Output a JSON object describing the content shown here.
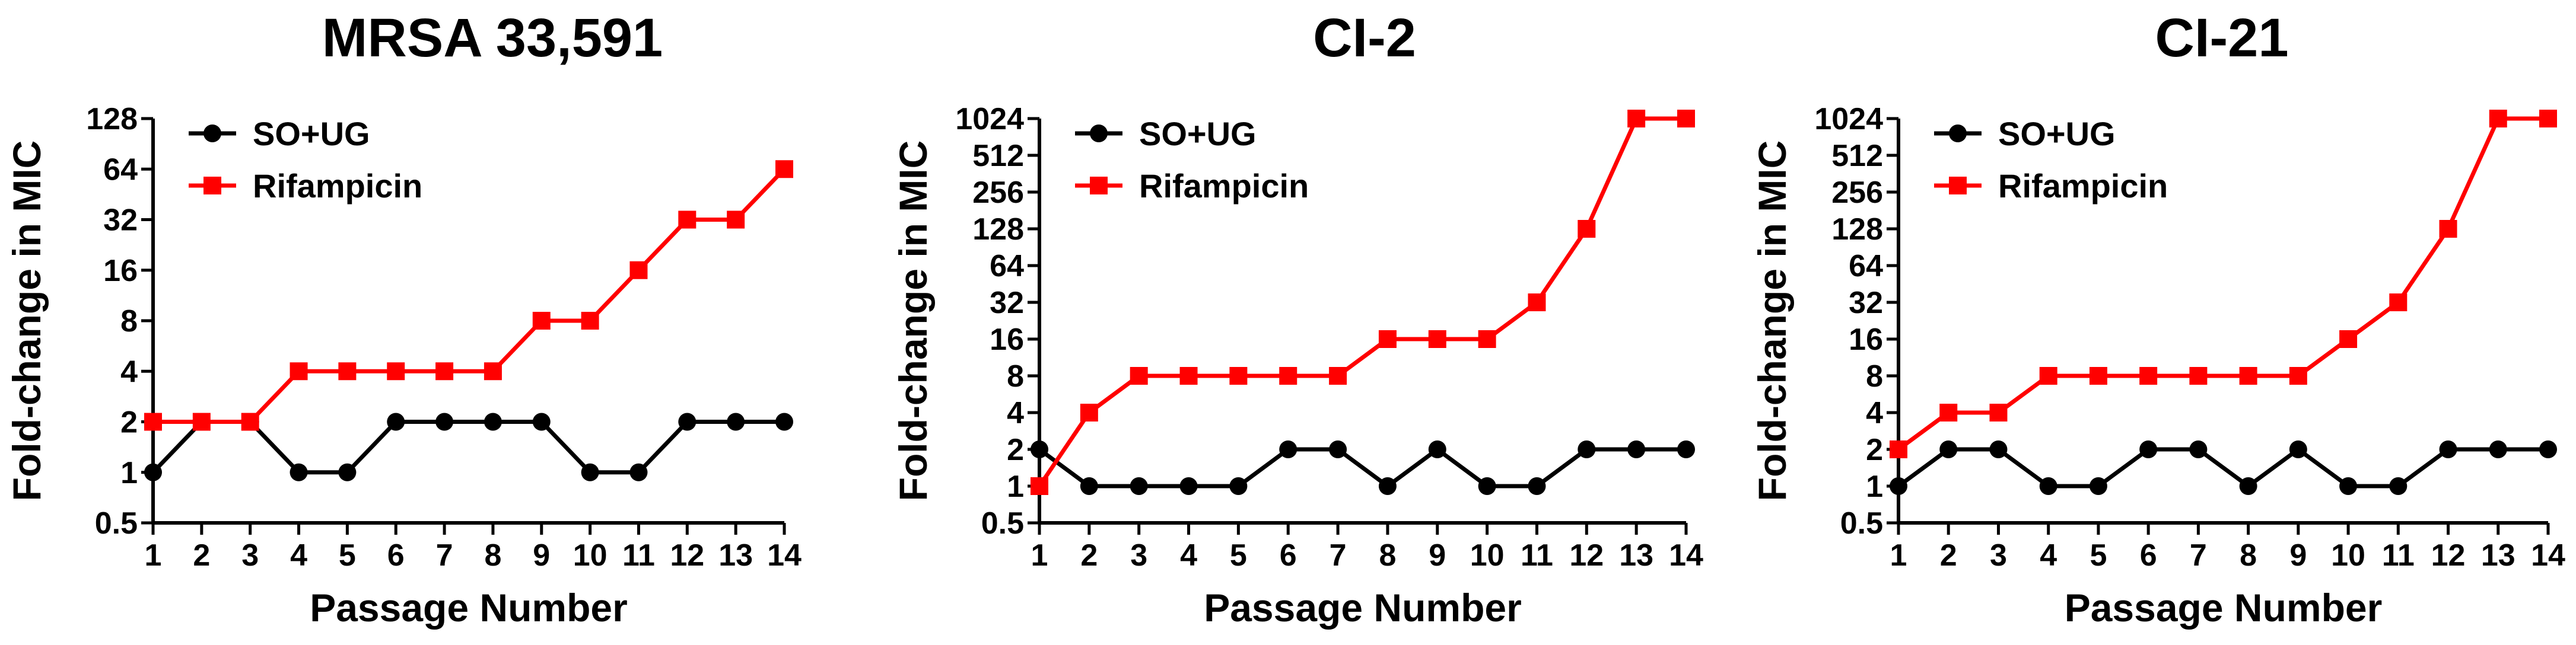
{
  "chart_data": [
    {
      "type": "line",
      "title": "MRSA 33,591",
      "xlabel": "Passage Number",
      "ylabel": "Fold-change in MIC",
      "yscale": "log2",
      "ylim": [
        0.5,
        128
      ],
      "xlim": [
        1,
        14
      ],
      "x": [
        1,
        2,
        3,
        4,
        5,
        6,
        7,
        8,
        9,
        10,
        11,
        12,
        13,
        14
      ],
      "yticks": [
        "0.5",
        "1",
        "2",
        "4",
        "8",
        "16",
        "32",
        "64",
        "128"
      ],
      "legend_position": "top-left",
      "series": [
        {
          "name": "SO+UG",
          "color": "#000000",
          "marker": "circle",
          "values": [
            1,
            2,
            2,
            1,
            1,
            2,
            2,
            2,
            2,
            1,
            1,
            2,
            2,
            2
          ]
        },
        {
          "name": "Rifampicin",
          "color": "#ff0000",
          "marker": "square",
          "values": [
            2,
            2,
            2,
            4,
            4,
            4,
            4,
            4,
            8,
            8,
            16,
            32,
            32,
            64
          ]
        }
      ]
    },
    {
      "type": "line",
      "title": "CI-2",
      "xlabel": "Passage Number",
      "ylabel": "Fold-change in MIC",
      "yscale": "log2",
      "ylim": [
        0.5,
        1024
      ],
      "xlim": [
        1,
        14
      ],
      "x": [
        1,
        2,
        3,
        4,
        5,
        6,
        7,
        8,
        9,
        10,
        11,
        12,
        13,
        14
      ],
      "yticks": [
        "0.5",
        "1",
        "2",
        "4",
        "8",
        "16",
        "32",
        "64",
        "128",
        "256",
        "512",
        "1024"
      ],
      "legend_position": "top-left",
      "series": [
        {
          "name": "SO+UG",
          "color": "#000000",
          "marker": "circle",
          "values": [
            2,
            1,
            1,
            1,
            1,
            2,
            2,
            1,
            2,
            1,
            1,
            2,
            2,
            2
          ]
        },
        {
          "name": "Rifampicin",
          "color": "#ff0000",
          "marker": "square",
          "values": [
            1,
            4,
            8,
            8,
            8,
            8,
            8,
            16,
            16,
            16,
            32,
            128,
            1024,
            1024
          ]
        }
      ]
    },
    {
      "type": "line",
      "title": "CI-21",
      "xlabel": "Passage Number",
      "ylabel": "Fold-change in MIC",
      "yscale": "log2",
      "ylim": [
        0.5,
        1024
      ],
      "xlim": [
        1,
        14
      ],
      "x": [
        1,
        2,
        3,
        4,
        5,
        6,
        7,
        8,
        9,
        10,
        11,
        12,
        13,
        14
      ],
      "yticks": [
        "0.5",
        "1",
        "2",
        "4",
        "8",
        "16",
        "32",
        "64",
        "128",
        "256",
        "512",
        "1024"
      ],
      "legend_position": "top-left",
      "series": [
        {
          "name": "SO+UG",
          "color": "#000000",
          "marker": "circle",
          "values": [
            1,
            2,
            2,
            1,
            1,
            2,
            2,
            1,
            2,
            1,
            1,
            2,
            2,
            2
          ]
        },
        {
          "name": "Rifampicin",
          "color": "#ff0000",
          "marker": "square",
          "values": [
            2,
            4,
            4,
            8,
            8,
            8,
            8,
            8,
            8,
            16,
            32,
            128,
            1024,
            1024
          ]
        }
      ]
    }
  ]
}
